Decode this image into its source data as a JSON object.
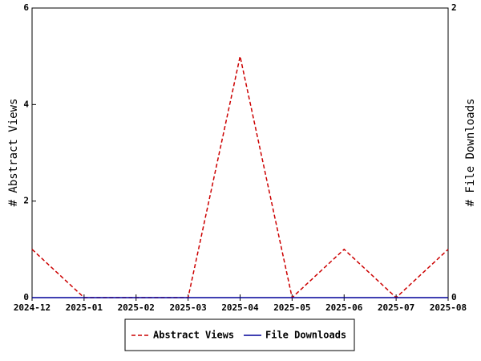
{
  "chart_data": {
    "type": "line",
    "categories": [
      "2024-12",
      "2025-01",
      "2025-02",
      "2025-03",
      "2025-04",
      "2025-05",
      "2025-06",
      "2025-07",
      "2025-08"
    ],
    "y_label": "# Abstract Views",
    "y2_label": "# File Downloads",
    "ylim": [
      0,
      6
    ],
    "yticks": [
      0,
      2,
      4,
      6
    ],
    "y2lim": [
      0,
      2
    ],
    "y2ticks": [
      0,
      2
    ],
    "series": [
      {
        "name": "Abstract Views",
        "color": "#cc0000",
        "dash": true,
        "values": [
          1,
          0,
          0,
          0,
          5,
          0,
          1,
          0,
          1
        ]
      },
      {
        "name": "File Downloads",
        "color": "#000099",
        "dash": false,
        "axis": "y2",
        "values": [
          0,
          0,
          0,
          0,
          0,
          0,
          0,
          0,
          0
        ]
      }
    ]
  }
}
